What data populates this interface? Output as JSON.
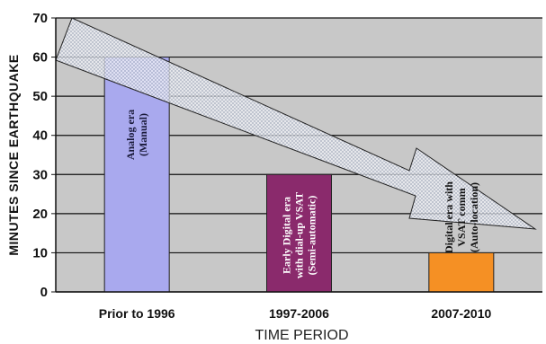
{
  "chart_data": {
    "type": "bar",
    "categories": [
      "Prior to 1996",
      "1997-2006",
      "2007-2010"
    ],
    "values": [
      60,
      30,
      10
    ],
    "xlabel": "TIME PERIOD",
    "ylabel": "MINUTES SINCE  EARTHQUAKE",
    "ylim": [
      0,
      70
    ],
    "yticks": [
      0,
      10,
      20,
      30,
      40,
      50,
      60,
      70
    ],
    "grid": true,
    "bar_colors": [
      "#a9a9ee",
      "#8a2a6c",
      "#f59024"
    ],
    "bar_annotations": [
      [
        "Analog era",
        "(Manual)"
      ],
      [
        "Early Digital era",
        "with dial-up VSAT",
        "(Semi-automatic)"
      ],
      [
        "Digital  era with",
        "VSAT comm",
        "(Auto-location)"
      ]
    ],
    "annotation_colors": [
      "#1a1a3a",
      "#ffffff",
      "#111111"
    ]
  }
}
